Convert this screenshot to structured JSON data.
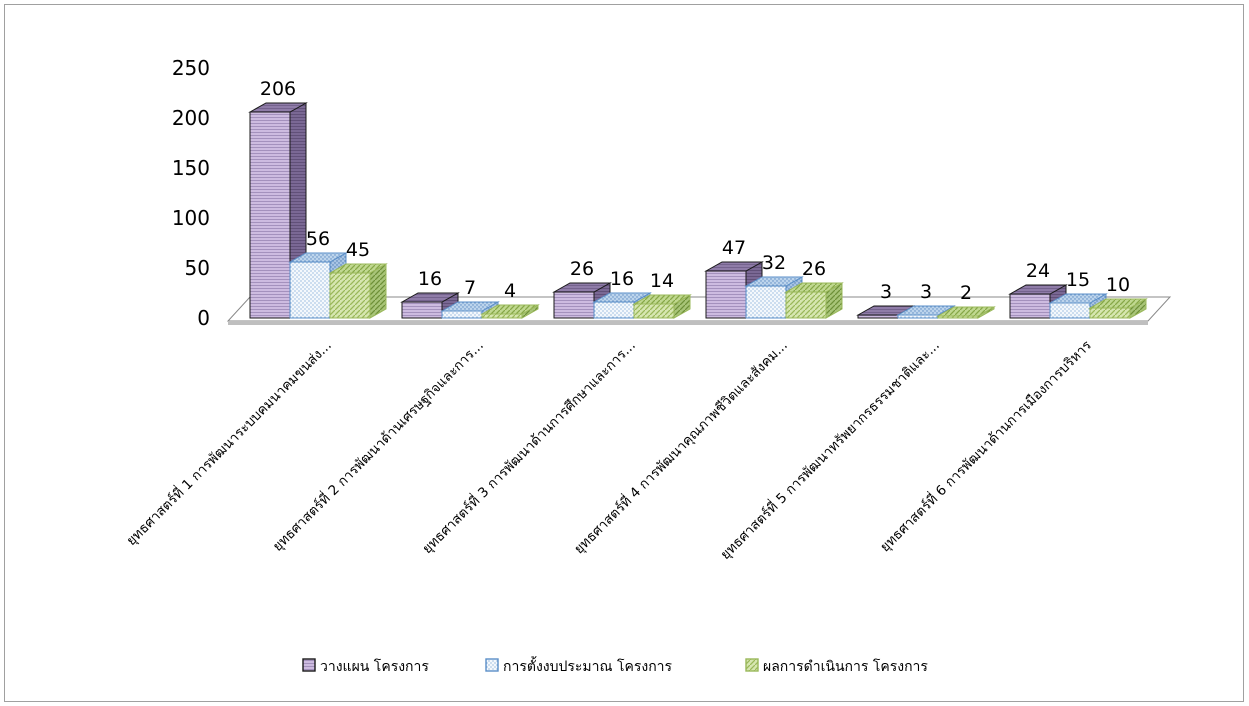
{
  "chart_data": {
    "type": "bar",
    "title": "",
    "xlabel": "",
    "ylabel": "",
    "ylim": [
      0,
      250
    ],
    "yticks": [
      0,
      50,
      100,
      150,
      200,
      250
    ],
    "grid": false,
    "legend": "bottom",
    "categories": [
      "ยุทธศาสตร์ที่ 1 การพัฒนาระบบคมนาคมขนส่ง...",
      "ยุทธศาสตร์ที่ 2 การพัฒนาด้านเศรษฐกิจและการ...",
      "ยุทธศาสตร์ที่ 3 การพัฒนาด้านการศึกษาและการ...",
      "ยุทธศาสตร์ที่ 4 การพัฒนาคุณภาพชีวิตและสังคม...",
      "ยุทธศาสตร์ที่ 5 การพัฒนาทรัพยากรธรรมชาติและ...",
      "ยุทธศาสตร์ที่ 6 การพัฒนาด้านการเมืองการบริหาร"
    ],
    "series": [
      {
        "name": "วางแผน โครงการ",
        "values": [
          206,
          16,
          26,
          47,
          3,
          24
        ],
        "color": "#c8b4dc",
        "pattern": "horizontal-lines"
      },
      {
        "name": "การตั้งงบประมาณ โครงการ",
        "values": [
          56,
          7,
          16,
          32,
          3,
          15
        ],
        "color": "#dce8f4",
        "pattern": "dots"
      },
      {
        "name": "ผลการดำเนินการ โครงการ",
        "values": [
          45,
          4,
          14,
          26,
          2,
          10
        ],
        "color": "#c4d890",
        "pattern": "diagonal"
      }
    ]
  }
}
